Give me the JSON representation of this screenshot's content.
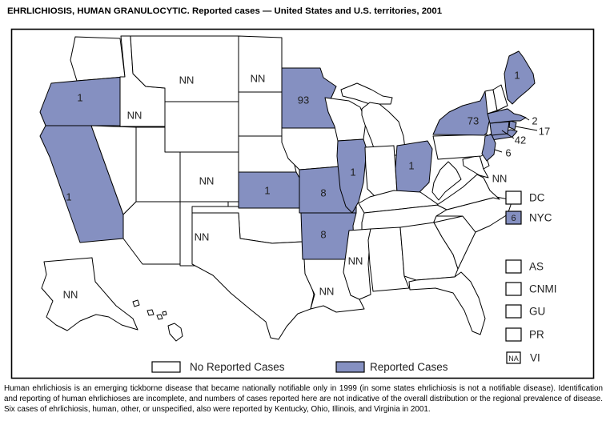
{
  "title": "EHRLICHIOSIS, HUMAN GRANULOCYTIC. Reported cases — United States and U.S. territories, 2001",
  "colors": {
    "reported": "#8590C1",
    "no_cases": "#FFFFFF",
    "border": "#000000",
    "label_text": "#1F1F1F"
  },
  "map": {
    "states": [
      {
        "id": "WA",
        "name": "Washington",
        "status": "none",
        "value": ""
      },
      {
        "id": "OR",
        "name": "Oregon",
        "status": "reported",
        "value": "1"
      },
      {
        "id": "CA",
        "name": "California",
        "status": "reported",
        "value": "1"
      },
      {
        "id": "NV",
        "name": "Nevada",
        "status": "none",
        "value": ""
      },
      {
        "id": "ID",
        "name": "Idaho",
        "status": "not_notifiable",
        "value": "NN"
      },
      {
        "id": "MT",
        "name": "Montana",
        "status": "not_notifiable",
        "value": "NN"
      },
      {
        "id": "WY",
        "name": "Wyoming",
        "status": "none",
        "value": ""
      },
      {
        "id": "UT",
        "name": "Utah",
        "status": "none",
        "value": ""
      },
      {
        "id": "CO",
        "name": "Colorado",
        "status": "not_notifiable",
        "value": "NN"
      },
      {
        "id": "AZ",
        "name": "Arizona",
        "status": "none",
        "value": ""
      },
      {
        "id": "NM",
        "name": "New Mexico",
        "status": "not_notifiable",
        "value": "NN"
      },
      {
        "id": "ND",
        "name": "North Dakota",
        "status": "not_notifiable",
        "value": "NN"
      },
      {
        "id": "SD",
        "name": "South Dakota",
        "status": "none",
        "value": ""
      },
      {
        "id": "NE",
        "name": "Nebraska",
        "status": "none",
        "value": ""
      },
      {
        "id": "KS",
        "name": "Kansas",
        "status": "reported",
        "value": "1"
      },
      {
        "id": "OK",
        "name": "Oklahoma",
        "status": "none",
        "value": ""
      },
      {
        "id": "TX",
        "name": "Texas",
        "status": "none",
        "value": ""
      },
      {
        "id": "MN",
        "name": "Minnesota",
        "status": "reported",
        "value": "93"
      },
      {
        "id": "IA",
        "name": "Iowa",
        "status": "none",
        "value": ""
      },
      {
        "id": "MO",
        "name": "Missouri",
        "status": "reported",
        "value": "8"
      },
      {
        "id": "AR",
        "name": "Arkansas",
        "status": "reported",
        "value": "8"
      },
      {
        "id": "LA",
        "name": "Louisiana",
        "status": "not_notifiable",
        "value": "NN"
      },
      {
        "id": "WI",
        "name": "Wisconsin",
        "status": "none",
        "value": ""
      },
      {
        "id": "IL",
        "name": "Illinois",
        "status": "reported",
        "value": "1"
      },
      {
        "id": "MI",
        "name": "Michigan",
        "status": "none",
        "value": ""
      },
      {
        "id": "IN",
        "name": "Indiana",
        "status": "none",
        "value": ""
      },
      {
        "id": "OH",
        "name": "Ohio",
        "status": "reported",
        "value": "1"
      },
      {
        "id": "KY",
        "name": "Kentucky",
        "status": "none",
        "value": ""
      },
      {
        "id": "TN",
        "name": "Tennessee",
        "status": "none",
        "value": ""
      },
      {
        "id": "MS",
        "name": "Mississippi",
        "status": "not_notifiable",
        "value": "NN"
      },
      {
        "id": "AL",
        "name": "Alabama",
        "status": "none",
        "value": ""
      },
      {
        "id": "GA",
        "name": "Georgia",
        "status": "none",
        "value": ""
      },
      {
        "id": "FL",
        "name": "Florida",
        "status": "none",
        "value": ""
      },
      {
        "id": "SC",
        "name": "South Carolina",
        "status": "none",
        "value": ""
      },
      {
        "id": "NC",
        "name": "North Carolina",
        "status": "none",
        "value": ""
      },
      {
        "id": "VA",
        "name": "Virginia",
        "status": "none",
        "value": ""
      },
      {
        "id": "WV",
        "name": "West Virginia",
        "status": "none",
        "value": ""
      },
      {
        "id": "MD",
        "name": "Maryland",
        "status": "not_notifiable",
        "value": "NN"
      },
      {
        "id": "DE",
        "name": "Delaware",
        "status": "none",
        "value": ""
      },
      {
        "id": "PA",
        "name": "Pennsylvania",
        "status": "none",
        "value": ""
      },
      {
        "id": "NY",
        "name": "New York",
        "status": "reported",
        "value": "73"
      },
      {
        "id": "NJ",
        "name": "New Jersey",
        "status": "reported",
        "value": "6"
      },
      {
        "id": "CT",
        "name": "Connecticut",
        "status": "reported",
        "value": "42"
      },
      {
        "id": "RI",
        "name": "Rhode Island",
        "status": "reported",
        "value": "17"
      },
      {
        "id": "MA",
        "name": "Massachusetts",
        "status": "reported",
        "value": "2"
      },
      {
        "id": "VT",
        "name": "Vermont",
        "status": "none",
        "value": ""
      },
      {
        "id": "NH",
        "name": "New Hampshire",
        "status": "none",
        "value": ""
      },
      {
        "id": "ME",
        "name": "Maine",
        "status": "reported",
        "value": "1"
      },
      {
        "id": "AK",
        "name": "Alaska",
        "status": "not_notifiable",
        "value": "NN"
      },
      {
        "id": "HI",
        "name": "Hawaii",
        "status": "none",
        "value": ""
      }
    ],
    "territories": [
      {
        "id": "DC",
        "label": "DC",
        "value": "",
        "status": "none"
      },
      {
        "id": "NYC",
        "label": "NYC",
        "value": "6",
        "status": "reported"
      },
      {
        "id": "AS",
        "label": "AS",
        "value": "",
        "status": "none"
      },
      {
        "id": "CNMI",
        "label": "CNMI",
        "value": "",
        "status": "none"
      },
      {
        "id": "GU",
        "label": "GU",
        "value": "",
        "status": "none"
      },
      {
        "id": "PR",
        "label": "PR",
        "value": "",
        "status": "none"
      },
      {
        "id": "VI",
        "label": "VI",
        "value": "NA",
        "status": "na"
      }
    ]
  },
  "legend": {
    "no_reported": "No Reported Cases",
    "reported": "Reported Cases"
  },
  "footnote": "Human ehrlichiosis is an emerging tickborne disease that became nationally notifiable only in 1999 (in some states ehrlichiosis is not a notifiable disease). Identification and reporting of human ehrlichioses are incomplete, and numbers of cases reported here are not indicative of the overall distribution or the regional prevalence of disease. Six cases of ehrlichiosis, human, other, or unspecified, also were reported by Kentucky, Ohio, Illinois, and Virginia in 2001."
}
